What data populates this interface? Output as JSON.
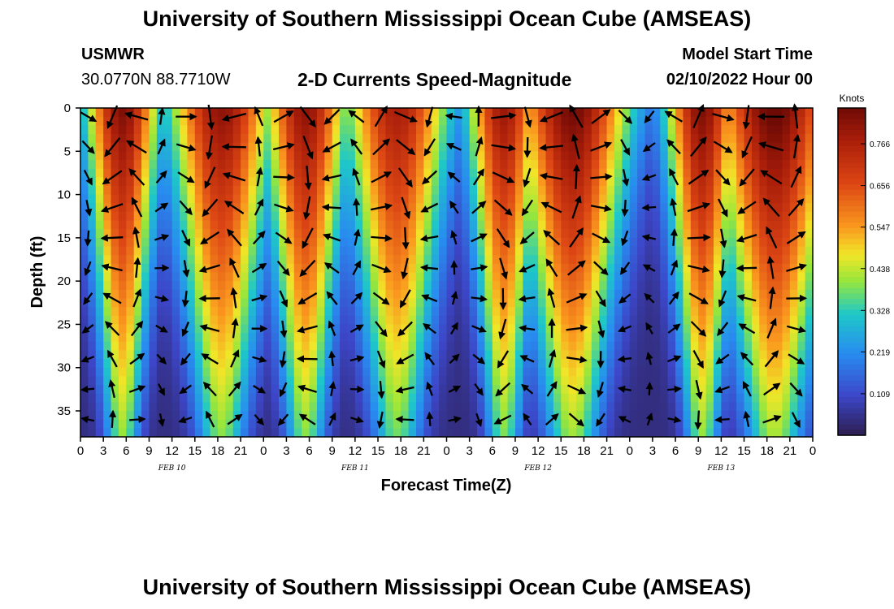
{
  "header": {
    "title": "University of Southern Mississippi Ocean Cube (AMSEAS)",
    "station": "USMWR",
    "coords": "30.0770N  88.7710W",
    "variable": "2-D Currents Speed-Magnitude",
    "start_label": "Model Start Time",
    "start_value": "02/10/2022 Hour 00"
  },
  "footer": {
    "title": "University of Southern Mississippi Ocean Cube (AMSEAS)"
  },
  "chart_data": {
    "type": "heatmap",
    "title": "2-D Currents Speed-Magnitude",
    "xlabel": "Forecast Time(Z)",
    "ylabel": "Depth (ft)",
    "xlim": [
      0,
      96
    ],
    "ylim": [
      38,
      0
    ],
    "x_ticks": [
      0,
      3,
      6,
      9,
      12,
      15,
      18,
      21,
      24,
      27,
      30,
      33,
      36,
      39,
      42,
      45,
      48,
      51,
      54,
      57,
      60,
      63,
      66,
      69,
      72,
      75,
      78,
      81,
      84,
      87,
      90,
      93,
      96
    ],
    "x_tick_labels": [
      "0",
      "3",
      "6",
      "9",
      "12",
      "15",
      "18",
      "21",
      "0",
      "3",
      "6",
      "9",
      "12",
      "15",
      "18",
      "21",
      "0",
      "3",
      "6",
      "9",
      "12",
      "15",
      "18",
      "21",
      "0",
      "3",
      "6",
      "9",
      "12",
      "15",
      "18",
      "21",
      "0"
    ],
    "y_ticks": [
      0,
      5,
      10,
      15,
      20,
      25,
      30,
      35
    ],
    "dates": [
      {
        "label": "FEB 10",
        "hour": 12
      },
      {
        "label": "FEB 11",
        "hour": 36
      },
      {
        "label": "FEB 12",
        "hour": 60
      },
      {
        "label": "FEB 13",
        "hour": 84
      }
    ],
    "colorbar": {
      "unit": "Knots",
      "min": 0,
      "max": 0.86,
      "ticks": [
        0.766,
        0.656,
        0.547,
        0.438,
        0.328,
        0.219,
        0.109
      ],
      "tick_labels": [
        "0.766",
        "0.656",
        "0.547",
        "0.438",
        "0.328",
        "0.219",
        "0.109"
      ]
    },
    "speed_peaks": [
      {
        "hour": 5.5,
        "peak": 0.8,
        "width": 3.5
      },
      {
        "hour": 18.5,
        "peak": 0.78,
        "width": 5.0
      },
      {
        "hour": 29.5,
        "peak": 0.78,
        "width": 4.0
      },
      {
        "hour": 41.5,
        "peak": 0.74,
        "width": 5.0
      },
      {
        "hour": 55.5,
        "peak": 0.76,
        "width": 3.5
      },
      {
        "hour": 64.5,
        "peak": 0.82,
        "width": 5.5
      },
      {
        "hour": 81.5,
        "peak": 0.8,
        "width": 3.5
      },
      {
        "hour": 91.0,
        "peak": 0.84,
        "width": 6.0
      }
    ]
  }
}
